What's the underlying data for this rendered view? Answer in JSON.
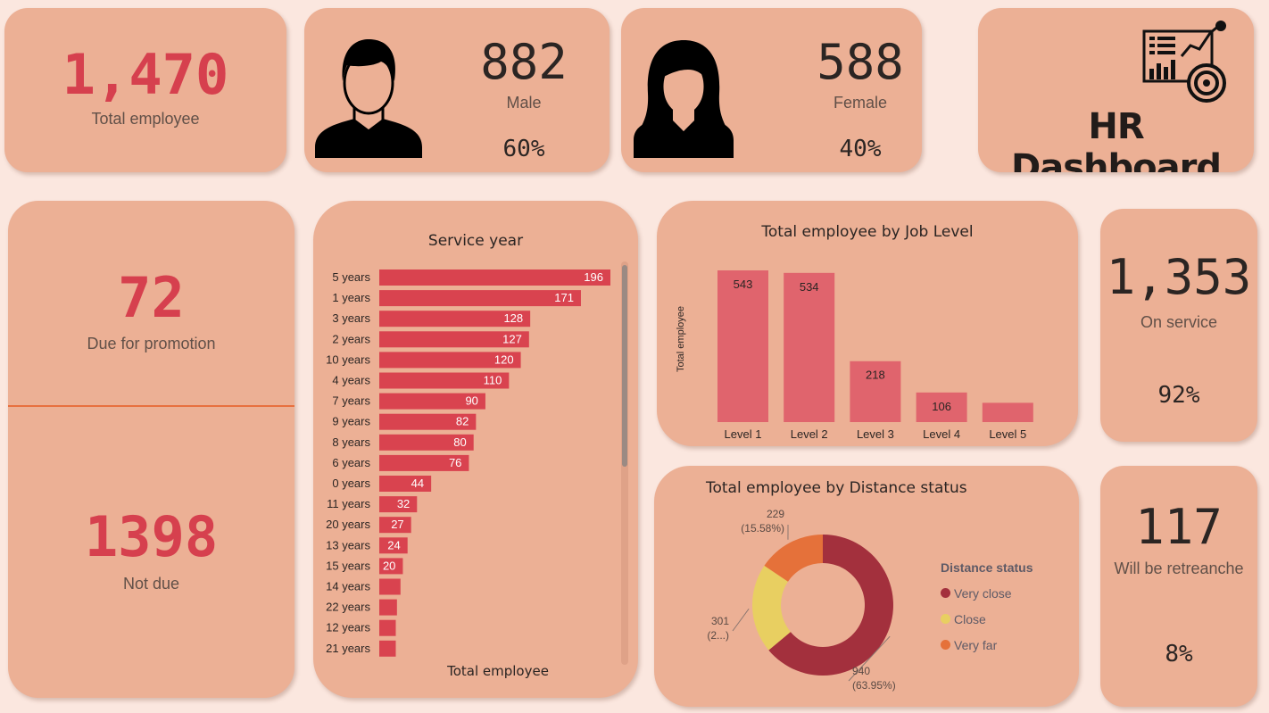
{
  "kpi_total": {
    "value": "1,470",
    "label": "Total employee"
  },
  "male": {
    "value": "882",
    "label": "Male",
    "pct": "60%"
  },
  "female": {
    "value": "588",
    "label": "Female",
    "pct": "40%"
  },
  "dashboard": {
    "title": "HR Dashboard"
  },
  "promotion": {
    "due_value": "72",
    "due_label": "Due for promotion",
    "not_due_value": "1398",
    "not_due_label": "Not due"
  },
  "on_service": {
    "value": "1,353",
    "label": "On service",
    "pct": "92%"
  },
  "retrench": {
    "value": "117",
    "label": "Will be retreanche",
    "pct": "8%"
  },
  "colors": {
    "accent_red": "#d6404e",
    "bar_red": "#d9434f",
    "card": "#ecb095",
    "bg": "#fbe7df"
  },
  "chart_data": [
    {
      "type": "bar",
      "orientation": "horizontal",
      "title": "Service year",
      "xlabel": "Total employee",
      "categories": [
        "5 years",
        "1 years",
        "3 years",
        "2 years",
        "10 years",
        "4 years",
        "7 years",
        "9 years",
        "8 years",
        "6 years",
        "0 years",
        "11 years",
        "20 years",
        "13 years",
        "15 years",
        "14 years",
        "22 years",
        "12 years",
        "21 years"
      ],
      "values": [
        196,
        171,
        128,
        127,
        120,
        110,
        90,
        82,
        80,
        76,
        44,
        32,
        27,
        24,
        20,
        18,
        15,
        14,
        14
      ],
      "data_labels": [
        "196",
        "171",
        "128",
        "127",
        "120",
        "110",
        "90",
        "82",
        "80",
        "76",
        "44",
        "32",
        "27",
        "24",
        "20",
        "",
        "",
        "",
        ""
      ],
      "xlim": [
        0,
        196
      ]
    },
    {
      "type": "bar",
      "title": "Total employee by Job Level",
      "ylabel": "Total employee",
      "categories": [
        "Level 1",
        "Level 2",
        "Level 3",
        "Level 4",
        "Level 5"
      ],
      "values": [
        543,
        534,
        218,
        106,
        69
      ],
      "data_labels": [
        "543",
        "534",
        "218",
        "106",
        ""
      ],
      "ylim": [
        0,
        543
      ]
    },
    {
      "type": "pie",
      "donut": true,
      "title": "Total employee by Distance status",
      "legend_title": "Distance status",
      "legend_position": "right",
      "slices": [
        {
          "name": "Very close",
          "value": 940,
          "label": "940",
          "pct_label": "(63.95%)",
          "color": "#a3303d"
        },
        {
          "name": "Close",
          "value": 301,
          "label": "301",
          "pct_label": "(2...)",
          "color": "#e8cf61"
        },
        {
          "name": "Very far",
          "value": 229,
          "label": "229",
          "pct_label": "(15.58%)",
          "color": "#e5713a"
        }
      ]
    }
  ]
}
